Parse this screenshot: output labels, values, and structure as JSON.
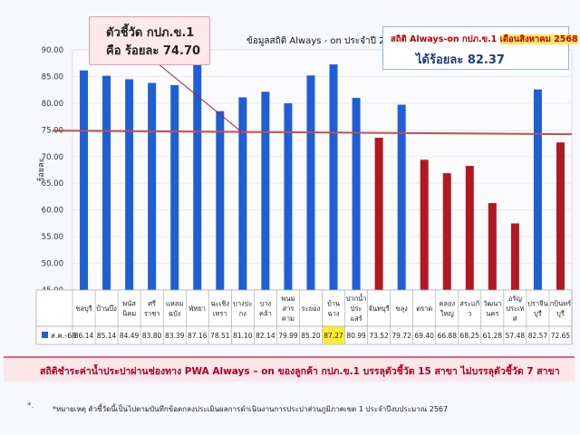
{
  "callout_left": {
    "line1": "ตัวชี้วัด กปภ.ข.1",
    "line2": "คือ ร้อยละ 74.70"
  },
  "callout_right": {
    "line1_prefix": "สถิติ Always-on กปภ.ข.1 ",
    "line1_highlight": "เดือนสิงหาคม 2568",
    "line2": "ได้ร้อยละ 82.37"
  },
  "bottom_banner": "สถิติชำระค่าน้ำประปาผ่านช่องทาง PWA Always – on ของลูกค้า กปภ.ข.1 บรรลุตัวชี้วัด 15 สาขา ไม่บรรลุตัวชี้วัด 7 สาขา",
  "footnote": "*หมายเหตุ ตัวชี้วัดนี้เป็นไปตามบันทึกข้อตกลงประเมินผลการดำเนินงานการประปาส่วนภูมิภาคเขต 1 ประจำปีงบประมาณ 2567",
  "footnote_marker": "*.",
  "colors": {
    "blue": "#1f5fd6",
    "red": "#b01822",
    "target_line": "#c0504d",
    "table_border": "#9aa4b5",
    "highlight": "#ffee33"
  },
  "chart_data": {
    "type": "bar",
    "title": "ข้อมูลสถิติ Always - on ประจำปี 2568",
    "ylabel": "ร้อยละ",
    "xlabel": "",
    "ylim": [
      45,
      90
    ],
    "yticks": [
      "45.00",
      "50.00",
      "55.00",
      "60.00",
      "65.00",
      "70.00",
      "75.00",
      "80.00",
      "85.00",
      "90.00"
    ],
    "series_name": "ส.ค.-68",
    "target": 74.7,
    "categories": [
      "ชลบุรี",
      "บ้านบึง",
      "พนัสนิคม",
      "ศรีราชา",
      "แหลมฉบัง",
      "พัทยา",
      "ฉะเชิงเทรา",
      "บางปะกง",
      "บางคล้า",
      "พนมสารคาม",
      "ระยอง",
      "บ้านฉาง",
      "ปากน้ำประแสร์",
      "จันทบุรี",
      "ขลุง",
      "ตราด",
      "คลองใหญ่",
      "สระแก้ว",
      "วัฒนานคร",
      "อรัญประเทศ",
      "ปราจีนบุรี",
      "กบินทร์บุรี"
    ],
    "category_lines": [
      [
        "ชลบุรี"
      ],
      [
        "บ้านบึง"
      ],
      [
        "พนัส",
        "นิคม"
      ],
      [
        "ศรี",
        "ราชา"
      ],
      [
        "แหลม",
        "ฉบัง"
      ],
      [
        "พัทยา"
      ],
      [
        "ฉะเชิง",
        "เทรา"
      ],
      [
        "บางปะ",
        "กง"
      ],
      [
        "บาง",
        "คล้า"
      ],
      [
        "พนม",
        "สาร",
        "คาม"
      ],
      [
        "ระยอง"
      ],
      [
        "บ้าน",
        "ฉาง"
      ],
      [
        "ปากน้ำ",
        "ประ",
        "แสร์"
      ],
      [
        "จันทบุรี"
      ],
      [
        "ขลุง"
      ],
      [
        "ตราด"
      ],
      [
        "คลอง",
        "ใหญ่"
      ],
      [
        "สระแก้",
        "ว"
      ],
      [
        "วัฒนา",
        "นคร"
      ],
      [
        "อรัญ",
        "ประเท",
        "ศ"
      ],
      [
        "ปราจีน",
        "บุรี"
      ],
      [
        "กบินทร์",
        "บุรี"
      ]
    ],
    "values": [
      86.14,
      85.14,
      84.49,
      83.8,
      83.39,
      87.16,
      78.51,
      81.1,
      82.14,
      79.99,
      85.2,
      87.27,
      80.99,
      73.52,
      79.72,
      69.4,
      66.88,
      68.25,
      61.28,
      57.48,
      82.57,
      72.65
    ],
    "value_labels": [
      "86.14",
      "85.14",
      "84.49",
      "83.80",
      "83.39",
      "87.16",
      "78.51",
      "81.10",
      "82.14",
      "79.99",
      "85.20",
      "87.27",
      "80.99",
      "73.52",
      "79.72",
      "69.40",
      "66.88",
      "68.25",
      "61.28",
      "57.48",
      "82.57",
      "72.65"
    ],
    "bar_colors": [
      "blue",
      "blue",
      "blue",
      "blue",
      "blue",
      "blue",
      "blue",
      "blue",
      "blue",
      "blue",
      "blue",
      "blue",
      "blue",
      "red",
      "blue",
      "red",
      "red",
      "red",
      "red",
      "red",
      "blue",
      "red"
    ],
    "highlighted_value_index": 11
  }
}
